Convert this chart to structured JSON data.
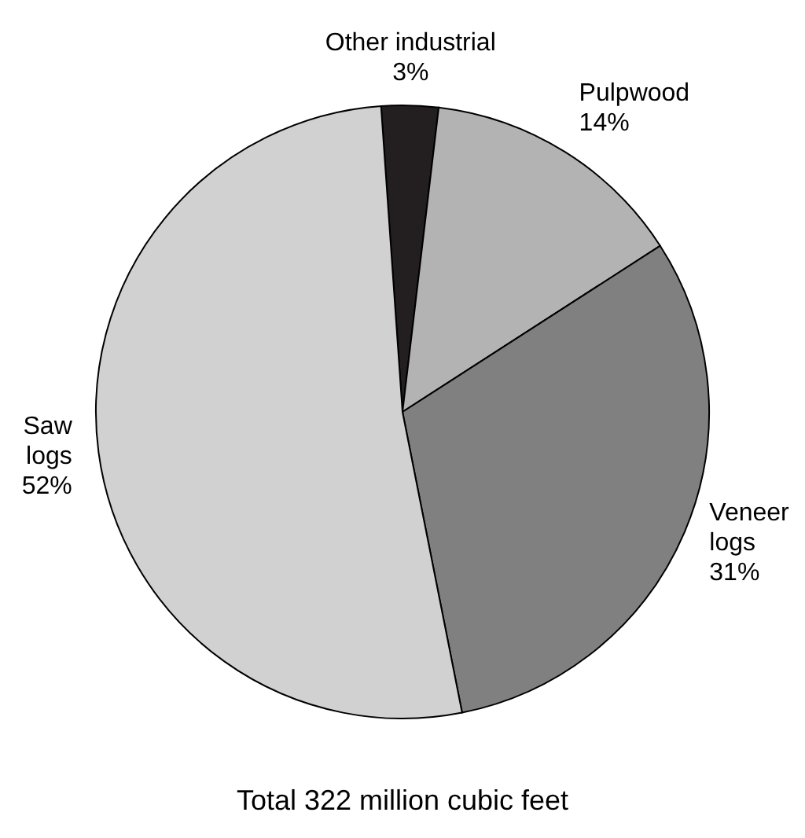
{
  "chart_data": {
    "type": "pie",
    "categories": [
      "Other industrial",
      "Pulpwood",
      "Veneer logs",
      "Saw logs"
    ],
    "values": [
      3,
      14,
      31,
      52
    ],
    "value_labels": [
      "3%",
      "14%",
      "31%",
      "52%"
    ],
    "colors": [
      "#231f20",
      "#b3b3b3",
      "#808080",
      "#d1d1d1"
    ],
    "annotations": [
      "Total 322 million cubic feet"
    ]
  }
}
